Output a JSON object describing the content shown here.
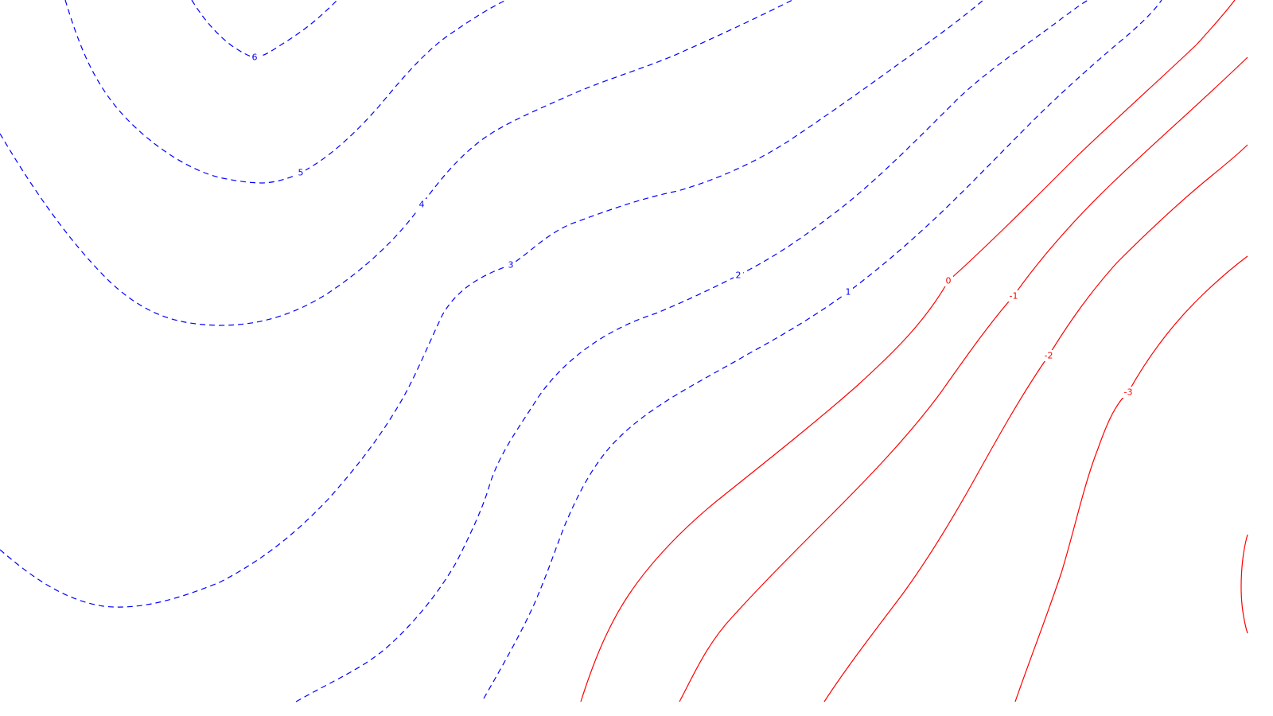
{
  "chart_data": {
    "type": "contour",
    "title": "",
    "xlabel": "",
    "ylabel": "",
    "grid": false,
    "legend": "none",
    "style": {
      "positive_color": "#0000ff",
      "negative_color": "#ff0000",
      "positive_dash": "dashed",
      "negative_dash": "solid"
    },
    "levels": [
      {
        "value": 6,
        "label": "6"
      },
      {
        "value": 5,
        "label": "5"
      },
      {
        "value": 4,
        "label": "4"
      },
      {
        "value": 3,
        "label": "3"
      },
      {
        "value": 2,
        "label": "2"
      },
      {
        "value": 1,
        "label": "1"
      },
      {
        "value": 0,
        "label": "0"
      },
      {
        "value": -1,
        "label": "-1"
      },
      {
        "value": -2,
        "label": "-2"
      },
      {
        "value": -3,
        "label": "-3"
      }
    ]
  }
}
